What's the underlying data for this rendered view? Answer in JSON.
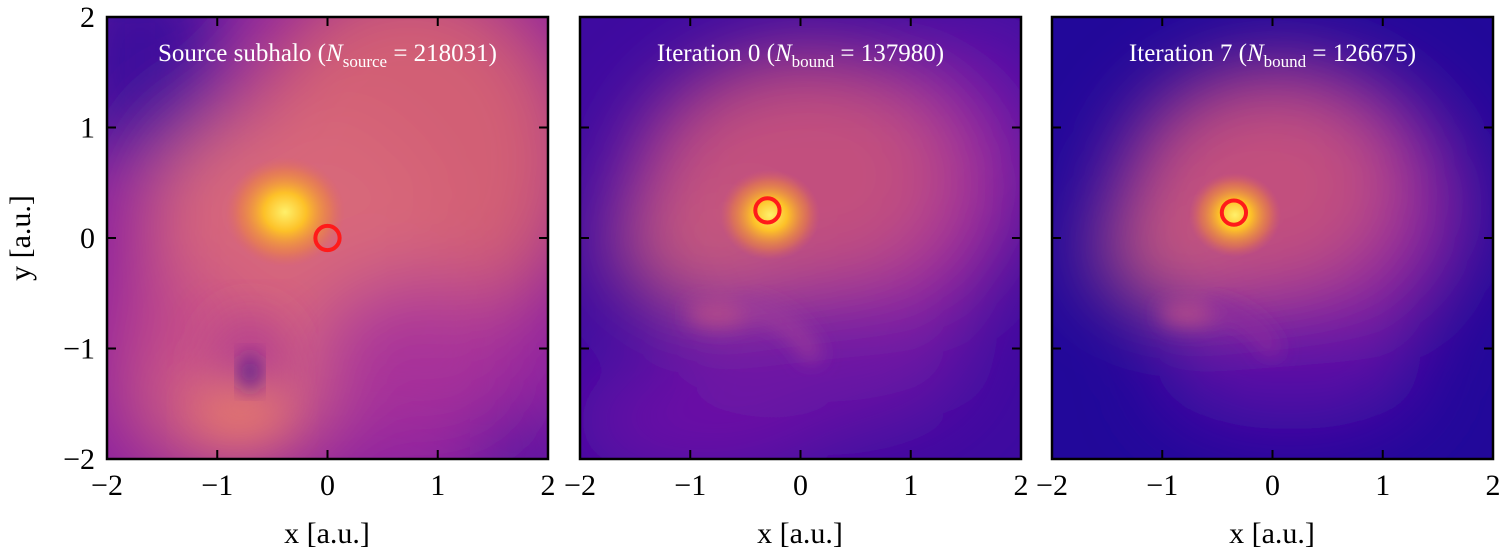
{
  "chart_data": [
    {
      "type": "heatmap",
      "title_main": "Source subhalo (",
      "title_var": "N",
      "title_sub": "source",
      "title_eq": " = 218031)",
      "count": 218031,
      "xlabel": "x [a.u.]",
      "ylabel": "y [a.u.]",
      "xlim": [
        -2,
        2
      ],
      "ylim": [
        -2,
        2
      ],
      "xticks": [
        -2,
        -1,
        0,
        1,
        2
      ],
      "yticks": [
        -2,
        -1,
        0,
        1,
        2
      ],
      "xtick_labels": [
        "−2",
        "−1",
        "0",
        "1",
        "2"
      ],
      "ytick_labels": [
        "−2",
        "−1",
        "0",
        "1",
        "2"
      ],
      "marker": {
        "x": 0.0,
        "y": 0.0,
        "radius": 0.11
      },
      "peak": {
        "x": -0.4,
        "y": 0.22
      },
      "colormap": "plasma"
    },
    {
      "type": "heatmap",
      "title_main": "Iteration 0 (",
      "title_var": "N",
      "title_sub": "bound",
      "title_eq": " = 137980)",
      "count": 137980,
      "xlabel": "x [a.u.]",
      "ylabel": "",
      "xlim": [
        -2,
        2
      ],
      "ylim": [
        -2,
        2
      ],
      "xticks": [
        -2,
        -1,
        0,
        1,
        2
      ],
      "yticks": [
        -2,
        -1,
        0,
        1,
        2
      ],
      "xtick_labels": [
        "−2",
        "−1",
        "0",
        "1",
        "2"
      ],
      "ytick_labels": [],
      "marker": {
        "x": -0.3,
        "y": 0.25,
        "radius": 0.11
      },
      "peak": {
        "x": -0.32,
        "y": 0.22
      },
      "colormap": "plasma"
    },
    {
      "type": "heatmap",
      "title_main": "Iteration 7 (",
      "title_var": "N",
      "title_sub": "bound",
      "title_eq": " = 126675)",
      "count": 126675,
      "xlabel": "x [a.u.]",
      "ylabel": "",
      "xlim": [
        -2,
        2
      ],
      "ylim": [
        -2,
        2
      ],
      "xticks": [
        -2,
        -1,
        0,
        1,
        2
      ],
      "yticks": [
        -2,
        -1,
        0,
        1,
        2
      ],
      "xtick_labels": [
        "−2",
        "−1",
        "0",
        "1",
        "2"
      ],
      "ytick_labels": [],
      "marker": {
        "x": -0.35,
        "y": 0.23,
        "radius": 0.11
      },
      "peak": {
        "x": -0.35,
        "y": 0.22
      },
      "colormap": "plasma"
    }
  ],
  "colors": {
    "plasma_dark": "#170a8f",
    "plasma_mid": "#9c179e",
    "plasma_warm": "#d8606e",
    "plasma_bright": "#fde725",
    "marker": "#ff1a1a",
    "title": "#ffffff"
  }
}
